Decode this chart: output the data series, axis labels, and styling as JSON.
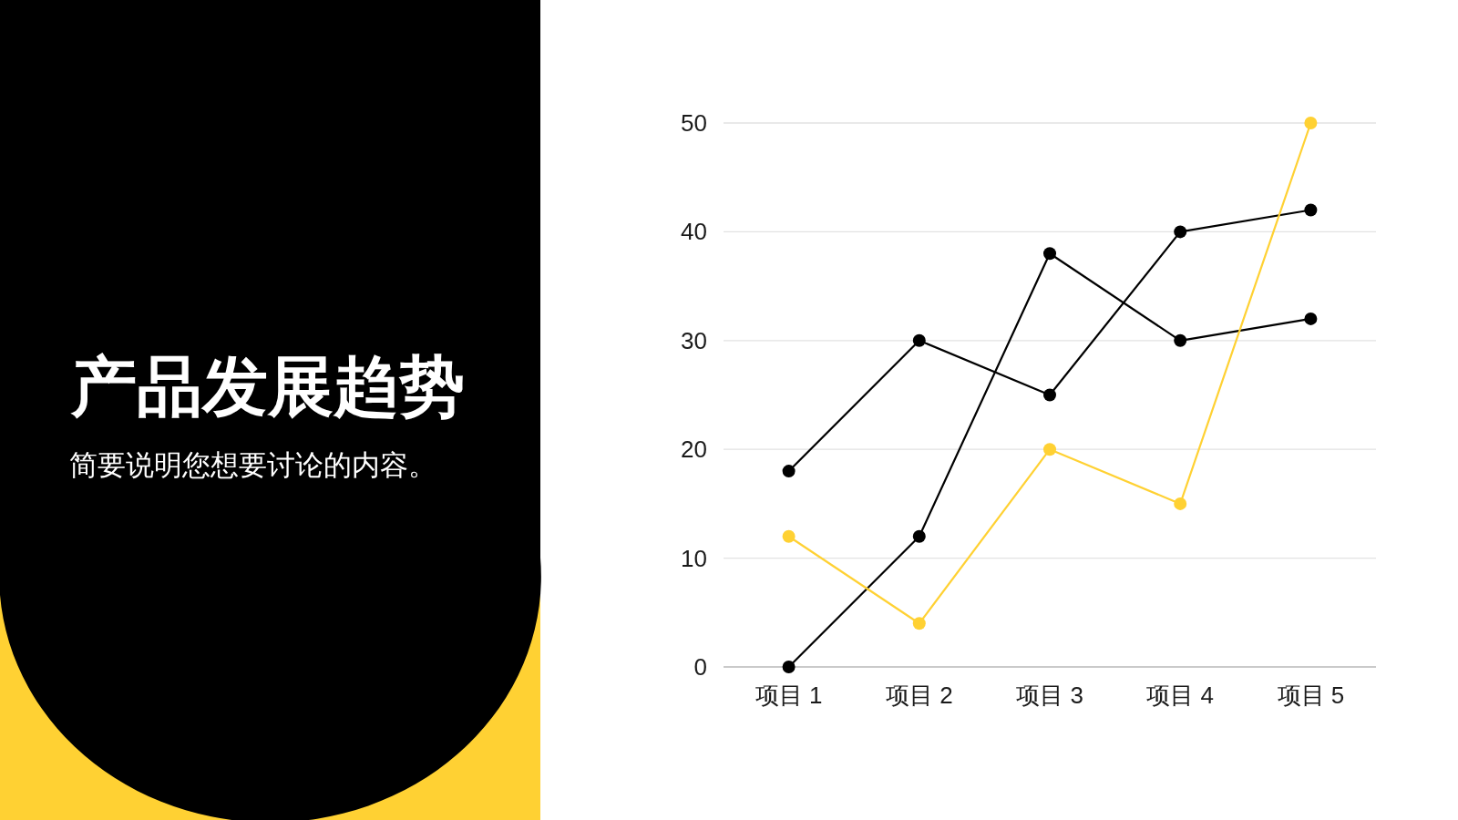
{
  "chart_data": {
    "type": "line",
    "title": "产品发展趋势",
    "subtitle": "简要说明您想要讨论的内容。",
    "categories": [
      "项目 1",
      "项目 2",
      "项目 3",
      "项目 4",
      "项目 5"
    ],
    "series": [
      {
        "color": "#000000",
        "values": [
          18,
          30,
          25,
          40,
          42
        ]
      },
      {
        "color": "#000000",
        "values": [
          0,
          12,
          38,
          30,
          32
        ]
      },
      {
        "color": "#ffd133",
        "values": [
          12,
          4,
          20,
          15,
          50
        ]
      }
    ],
    "ylim": [
      0,
      50
    ],
    "yticks": [
      0,
      10,
      20,
      30,
      40,
      50
    ],
    "grid": "y",
    "marker": "circle",
    "line_style": "solid"
  }
}
